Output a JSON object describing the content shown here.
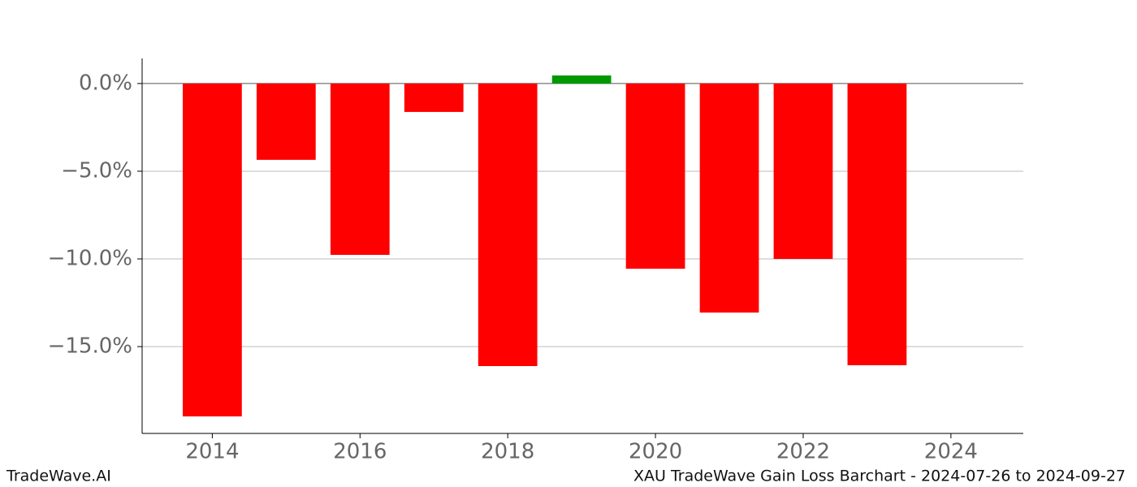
{
  "chart_data": {
    "type": "bar",
    "title": "XAU TradeWave Gain Loss Barchart - 2024-07-26 to 2024-09-27",
    "watermark": "TradeWave.AI",
    "x": [
      2014,
      2015,
      2016,
      2017,
      2018,
      2019,
      2020,
      2021,
      2022,
      2023
    ],
    "values": [
      -18.98,
      -4.35,
      -9.77,
      -1.62,
      -16.11,
      0.46,
      -10.56,
      -13.06,
      -10.0,
      -16.06
    ],
    "color_positive": "#009900",
    "color_negative": "#ff0000",
    "xlim": [
      2013.05,
      2024.98
    ],
    "xticks": [
      2014,
      2016,
      2018,
      2020,
      2022,
      2024
    ],
    "ylim": [
      -19.95,
      1.43
    ],
    "yticks": [
      {
        "value": 0,
        "label": "0.0%"
      },
      {
        "value": -5,
        "label": "−5.0%"
      },
      {
        "value": -10,
        "label": "−10.0%"
      },
      {
        "value": -15,
        "label": "−15.0%"
      }
    ],
    "grid": true
  }
}
